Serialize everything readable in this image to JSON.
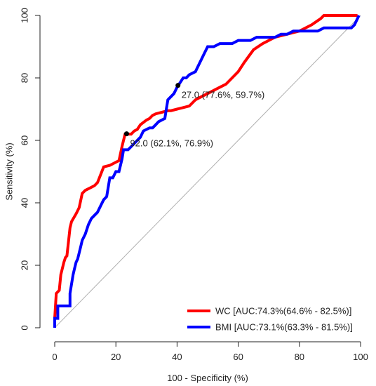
{
  "chart_data": {
    "type": "line",
    "title": "",
    "xlabel": "100 - Specificity (%)",
    "ylabel": "Sensitivity (%)",
    "xlim": [
      0,
      100
    ],
    "ylim": [
      0,
      100
    ],
    "xticks": [
      "0",
      "20",
      "40",
      "60",
      "80",
      "100"
    ],
    "yticks": [
      "0",
      "20",
      "40",
      "60",
      "80",
      "100"
    ],
    "grid": false,
    "legend_position": "bottom-right",
    "reference_line": {
      "from": [
        0,
        0
      ],
      "to": [
        100,
        100
      ],
      "color": "#b0b0b0"
    },
    "series": [
      {
        "name": "WC [AUC:74.3%(64.6% - 82.5%)]",
        "color": "#ff0000",
        "x": [
          0,
          0,
          0.5,
          1.5,
          2,
          3,
          3.5,
          4,
          5,
          5.5,
          7,
          8,
          9,
          10,
          12,
          13,
          14,
          15,
          16,
          18,
          20,
          21,
          22,
          23,
          25,
          26,
          27,
          28,
          30,
          31,
          32,
          33,
          35,
          37,
          38,
          40,
          42,
          44,
          46,
          48,
          50,
          52,
          54,
          56,
          58,
          60,
          62,
          65,
          68,
          72,
          76,
          80,
          84,
          87,
          88,
          90,
          92,
          95,
          97,
          99
        ],
        "y": [
          0,
          3,
          11,
          12,
          17,
          21,
          22.5,
          23,
          32,
          34,
          36.5,
          38.5,
          43,
          44,
          45,
          45.5,
          46.5,
          49,
          51.5,
          52,
          53,
          53.5,
          58,
          62,
          62,
          63,
          63.5,
          65,
          66.5,
          67,
          68,
          68.5,
          69,
          69.5,
          69.5,
          70,
          70.5,
          71,
          73,
          74,
          75,
          76,
          77,
          78,
          80,
          82,
          85,
          89,
          91,
          93,
          94,
          95,
          97,
          99,
          100,
          100,
          100,
          100,
          100,
          100
        ]
      },
      {
        "name": "BMI [AUC:73.1%(63.3% - 81.5%)]",
        "color": "#0000ff",
        "x": [
          0,
          0,
          1,
          1,
          5,
          5,
          5.5,
          6,
          6.5,
          7,
          7.5,
          8,
          8.5,
          9,
          10,
          11,
          12,
          13,
          14,
          15,
          16,
          17,
          18,
          19,
          20,
          21,
          22,
          22.5,
          23,
          24,
          25,
          26,
          27,
          28,
          29,
          31,
          32,
          33,
          34,
          36,
          36.5,
          37,
          38,
          39,
          40,
          41,
          42,
          43,
          44,
          45,
          46,
          47,
          48,
          49,
          50,
          51,
          52,
          54,
          56,
          58,
          60,
          62,
          64,
          66,
          68,
          70,
          72,
          74,
          76,
          78,
          80,
          82,
          84,
          86,
          88,
          90,
          92,
          94,
          96,
          97,
          98,
          98.5,
          99,
          99.5
        ],
        "y": [
          0,
          3,
          3,
          7,
          7,
          11,
          14,
          17,
          19,
          21,
          22,
          24,
          26,
          28,
          30,
          33,
          35,
          36,
          37,
          39,
          41,
          42,
          48,
          48,
          50,
          50,
          54,
          57,
          57,
          57,
          58,
          59,
          60,
          61,
          63,
          64,
          64,
          65,
          66,
          67,
          70,
          73,
          74,
          75,
          77,
          78.5,
          80,
          80,
          81,
          81.5,
          82,
          84,
          86,
          88,
          90,
          90,
          90,
          91,
          91,
          91,
          92,
          92,
          92,
          93,
          93,
          93,
          93,
          94,
          94,
          95,
          95,
          95,
          95,
          95,
          96,
          96,
          96,
          96,
          96,
          96,
          97,
          98,
          99,
          100
        ]
      }
    ],
    "annotations": [
      {
        "x": 23.5,
        "y": 62.1,
        "label": "92.0 (62.1%, 76.9%)"
      },
      {
        "x": 40.3,
        "y": 77.6,
        "label": "27.0 (77.6%, 59.7%)"
      }
    ]
  }
}
